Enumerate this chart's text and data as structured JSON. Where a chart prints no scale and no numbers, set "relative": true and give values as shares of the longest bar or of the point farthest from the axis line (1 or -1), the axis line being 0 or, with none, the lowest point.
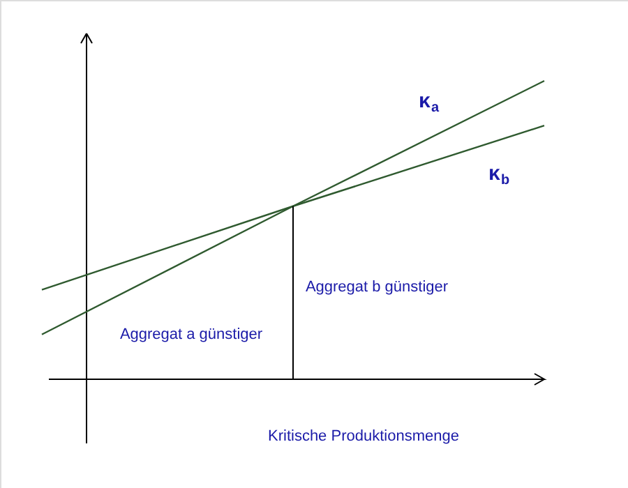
{
  "chart_data": {
    "type": "line",
    "relative": true,
    "categories": [
      null,
      null,
      null
    ],
    "series": [
      {
        "name": "κ$_{a}$",
        "color": "#2f5a2f",
        "values": [
          0.15,
          0.58,
          1.0
        ]
      },
      {
        "name": "κ$_{b}$",
        "color": "#2f5a2f",
        "values": [
          0.3,
          0.58,
          0.85
        ]
      }
    ],
    "annotations": [
      "Aggregat a günstiger",
      "Aggregat b günstiger",
      "Kritische Produktionsmenge"
    ],
    "marker": "none",
    "line_style": "solid"
  }
}
